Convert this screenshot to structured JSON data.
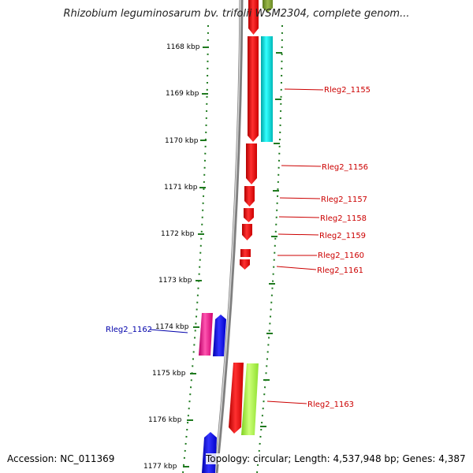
{
  "title": "Rhizobium leguminosarum bv. trifolii WSM2304, complete genom...",
  "footer": {
    "accession": "Accession: NC_011369",
    "topology": "Topology: circular; Length: 4,537,948 bp; Genes: 4,387"
  },
  "colors": {
    "backbone": "#8a8a8a",
    "tick": "#1f7a1f",
    "label_forward": "#cc0000",
    "label_reverse": "#0000aa",
    "gene_red": "#ff0000",
    "gene_cyan": "#00d0d0",
    "gene_magenta": "#ee1c8c",
    "gene_blue": "#0000ff",
    "gene_lime": "#a6ff33",
    "gene_olive": "#7a9a2a"
  },
  "ticks": [
    {
      "label": "1168 kbp"
    },
    {
      "label": "1169 kbp"
    },
    {
      "label": "1170 kbp"
    },
    {
      "label": "1171 kbp"
    },
    {
      "label": "1172 kbp"
    },
    {
      "label": "1173 kbp"
    },
    {
      "label": "1174 kbp"
    },
    {
      "label": "1175 kbp"
    },
    {
      "label": "1176 kbp"
    },
    {
      "label": "1177 kbp"
    }
  ],
  "gene_labels": [
    {
      "label": "Rleg2_1155",
      "strand": "forward"
    },
    {
      "label": "Rleg2_1156",
      "strand": "forward"
    },
    {
      "label": "Rleg2_1157",
      "strand": "forward"
    },
    {
      "label": "Rleg2_1158",
      "strand": "forward"
    },
    {
      "label": "Rleg2_1159",
      "strand": "forward"
    },
    {
      "label": "Rleg2_1160",
      "strand": "forward"
    },
    {
      "label": "Rleg2_1161",
      "strand": "forward"
    },
    {
      "label": "Rleg2_1162",
      "strand": "reverse"
    },
    {
      "label": "Rleg2_1163",
      "strand": "forward"
    }
  ]
}
